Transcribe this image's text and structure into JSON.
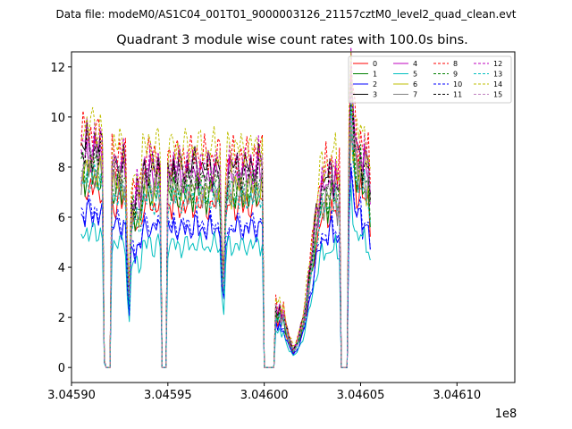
{
  "figure": {
    "suptitle": "Data file: modeM0/AS1C04_001T01_9000003126_21157cztM0_level2_quad_clean.evt"
  },
  "chart_data": {
    "type": "line",
    "title": "Quadrant 3 module wise count rates with 100.0s bins.",
    "xlabel": "",
    "ylabel": "",
    "x_offset_label": "1e8",
    "xlim": [
      3.0459,
      3.04613
    ],
    "ylim": [
      -0.6,
      12.6
    ],
    "x_ticks": [
      3.0459,
      3.04595,
      3.046,
      3.04605,
      3.0461
    ],
    "x_tick_labels": [
      "3.04590",
      "3.04595",
      "3.04600",
      "3.04605",
      "3.04610"
    ],
    "y_ticks": [
      0,
      2,
      4,
      6,
      8,
      10,
      12
    ],
    "y_tick_labels": [
      "0",
      "2",
      "4",
      "6",
      "8",
      "10",
      "12"
    ],
    "grid": false,
    "legend_position": "top-right",
    "legend_columns": 4,
    "x_bin": 1e-06,
    "x_start": 3.045905,
    "profile": [
      6.0,
      6.2,
      6.0,
      6.3,
      6.1,
      6.2,
      6.0,
      6.2,
      6.1,
      6.0,
      6.2,
      6.0,
      0.2,
      0.0,
      0.0,
      0.0,
      5.6,
      5.7,
      5.5,
      5.6,
      5.8,
      5.5,
      5.7,
      5.6,
      3.2,
      2.0,
      4.5,
      4.8,
      4.6,
      4.9,
      4.7,
      4.8,
      5.5,
      5.6,
      5.5,
      5.7,
      5.6,
      5.4,
      5.5,
      5.6,
      5.7,
      5.5,
      0.0,
      0.0,
      0.0,
      5.5,
      5.6,
      5.4,
      5.7,
      5.5,
      5.6,
      5.5,
      5.4,
      5.6,
      5.5,
      5.6,
      5.5,
      5.6,
      5.5,
      5.6,
      5.7,
      5.5,
      5.6,
      5.5,
      5.6,
      5.4,
      5.5,
      5.6,
      5.5,
      5.6,
      5.5,
      5.6,
      5.5,
      3.2,
      2.5,
      4.8,
      5.5,
      5.6,
      5.4,
      5.6,
      5.5,
      5.6,
      5.5,
      5.6,
      5.4,
      5.5,
      5.6,
      5.5,
      5.6,
      5.5,
      5.6,
      5.5,
      5.7,
      5.6,
      5.8,
      0.0,
      0.0,
      0.0,
      0.0,
      0.0,
      0.0,
      1.8,
      1.5,
      1.7,
      1.4,
      1.6,
      1.2,
      1.0,
      0.8,
      0.7,
      0.5,
      0.6,
      0.7,
      0.9,
      1.1,
      1.3,
      1.6,
      2.0,
      2.5,
      2.9,
      3.3,
      3.8,
      4.2,
      4.5,
      4.9,
      5.2,
      5.0,
      5.4,
      5.1,
      5.3,
      5.6,
      5.2,
      5.5,
      4.9,
      5.3,
      0.0,
      0.0,
      0.0,
      0.0,
      6.2,
      8.0,
      7.0,
      6.5,
      6.0,
      5.8,
      6.2,
      5.6,
      5.9,
      5.5,
      5.7,
      4.8
    ],
    "series": [
      {
        "name": "0",
        "color": "#ff0000",
        "dashed": false,
        "scale": 1.17,
        "phase": 0.0
      },
      {
        "name": "1",
        "color": "#008000",
        "dashed": false,
        "scale": 1.25,
        "phase": 0.7
      },
      {
        "name": "2",
        "color": "#0000ff",
        "dashed": false,
        "scale": 1.0,
        "phase": 1.4
      },
      {
        "name": "3",
        "color": "#000000",
        "dashed": false,
        "scale": 1.45,
        "phase": 2.1
      },
      {
        "name": "4",
        "color": "#bf00bf",
        "dashed": false,
        "scale": 1.38,
        "phase": 2.8
      },
      {
        "name": "5",
        "color": "#00bfbf",
        "dashed": false,
        "scale": 0.88,
        "phase": 3.5
      },
      {
        "name": "6",
        "color": "#bfbf00",
        "dashed": false,
        "scale": 1.3,
        "phase": 4.2
      },
      {
        "name": "7",
        "color": "#808080",
        "dashed": false,
        "scale": 1.27,
        "phase": 4.9
      },
      {
        "name": "8",
        "color": "#ff0000",
        "dashed": true,
        "scale": 1.52,
        "phase": 5.6
      },
      {
        "name": "9",
        "color": "#008000",
        "dashed": true,
        "scale": 1.32,
        "phase": 0.35
      },
      {
        "name": "10",
        "color": "#0000ff",
        "dashed": true,
        "scale": 1.03,
        "phase": 1.05
      },
      {
        "name": "11",
        "color": "#000000",
        "dashed": true,
        "scale": 1.4,
        "phase": 1.75
      },
      {
        "name": "12",
        "color": "#bf00bf",
        "dashed": true,
        "scale": 1.48,
        "phase": 2.45
      },
      {
        "name": "13",
        "color": "#00bfbf",
        "dashed": true,
        "scale": 1.22,
        "phase": 3.15
      },
      {
        "name": "14",
        "color": "#bfbf00",
        "dashed": true,
        "scale": 1.58,
        "phase": 3.85
      },
      {
        "name": "15",
        "color": "#bf7fbf",
        "dashed": true,
        "scale": 1.35,
        "phase": 4.55
      }
    ]
  }
}
